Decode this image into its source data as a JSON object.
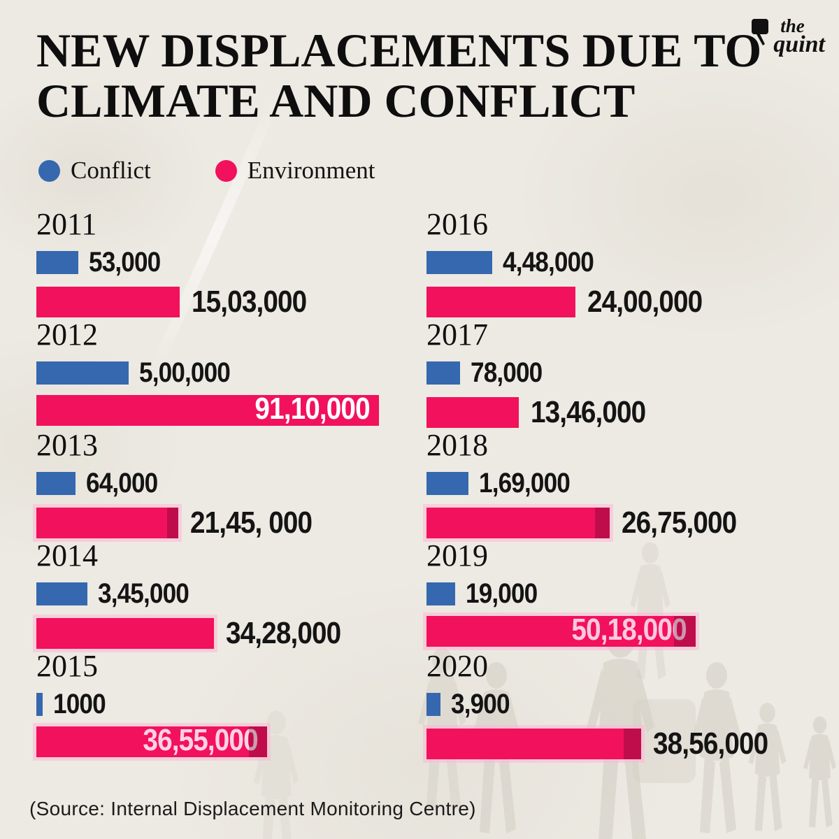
{
  "page": {
    "background": "#edeae3",
    "text_color": "#0e0e0e"
  },
  "logo": {
    "line1": "the",
    "line2": "quint",
    "color": "#111111"
  },
  "header": {
    "title_line1": "NEW DISPLACEMENTS DUE TO",
    "title_line2": "CLIMATE AND CONFLICT"
  },
  "legend": {
    "conflict": {
      "label": "Conflict",
      "color": "#3568af"
    },
    "environment": {
      "label": "Environment",
      "color": "#f1115c"
    }
  },
  "source_note": "(Source: Internal Displacement Monitoring Centre)",
  "chart_data": {
    "type": "bar",
    "orientation": "horizontal",
    "title": "NEW DISPLACEMENTS DUE TO CLIMATE AND CONFLICT",
    "legend_position": "top-left",
    "number_format": "Indian lakh grouping",
    "series": [
      {
        "name": "Conflict",
        "color": "#3568af"
      },
      {
        "name": "Environment",
        "color": "#f1115c"
      }
    ],
    "years": [
      {
        "year": "2011",
        "conflict_label": "53,000",
        "conflict_value": 53000,
        "environment_label": "15,03,000",
        "environment_value": 1503000,
        "conflict_bar_w": 60,
        "environment_bar_w": 205,
        "env_label_inside": false,
        "env_inside_color": "",
        "glow": false,
        "dark_edge": false
      },
      {
        "year": "2012",
        "conflict_label": "5,00,000",
        "conflict_value": 500000,
        "environment_label": "91,10,000",
        "environment_value": 9110000,
        "conflict_bar_w": 132,
        "environment_bar_w": 490,
        "env_label_inside": true,
        "env_inside_color": "#ffffff",
        "glow": false,
        "dark_edge": false
      },
      {
        "year": "2013",
        "conflict_label": "64,000",
        "conflict_value": 64000,
        "environment_label": "21,45, 000",
        "environment_value": 2145000,
        "conflict_bar_w": 56,
        "environment_bar_w": 203,
        "env_label_inside": false,
        "env_inside_color": "",
        "glow": true,
        "dark_edge": true
      },
      {
        "year": "2014",
        "conflict_label": "3,45,000",
        "conflict_value": 345000,
        "environment_label": "34,28,000",
        "environment_value": 3428000,
        "conflict_bar_w": 73,
        "environment_bar_w": 254,
        "env_label_inside": false,
        "env_inside_color": "",
        "glow": true,
        "dark_edge": false
      },
      {
        "year": "2015",
        "conflict_label": "1000",
        "conflict_value": 1000,
        "environment_label": "36,55,000",
        "environment_value": 3655000,
        "conflict_bar_w": 9,
        "environment_bar_w": 330,
        "env_label_inside": true,
        "env_inside_color": "#ffd2e4",
        "glow": true,
        "dark_edge": true
      },
      {
        "year": "2016",
        "conflict_label": "4,48,000",
        "conflict_value": 448000,
        "environment_label": "24,00,000",
        "environment_value": 2400000,
        "conflict_bar_w": 94,
        "environment_bar_w": 213,
        "env_label_inside": false,
        "env_inside_color": "",
        "glow": false,
        "dark_edge": false
      },
      {
        "year": "2017",
        "conflict_label": "78,000",
        "conflict_value": 78000,
        "environment_label": "13,46,000",
        "environment_value": 1346000,
        "conflict_bar_w": 48,
        "environment_bar_w": 132,
        "env_label_inside": false,
        "env_inside_color": "",
        "glow": false,
        "dark_edge": false
      },
      {
        "year": "2018",
        "conflict_label": "1,69,000",
        "conflict_value": 169000,
        "environment_label": "26,75,000",
        "environment_value": 2675000,
        "conflict_bar_w": 60,
        "environment_bar_w": 262,
        "env_label_inside": false,
        "env_inside_color": "",
        "glow": true,
        "dark_edge": true
      },
      {
        "year": "2019",
        "conflict_label": "19,000",
        "conflict_value": 19000,
        "environment_label": "50,18,000",
        "environment_value": 5018000,
        "conflict_bar_w": 41,
        "environment_bar_w": 385,
        "env_label_inside": true,
        "env_inside_color": "#ffc9de",
        "glow": true,
        "dark_edge": true
      },
      {
        "year": "2020",
        "conflict_label": "3,900",
        "conflict_value": 3900,
        "environment_label": "38,56,000",
        "environment_value": 3856000,
        "conflict_bar_w": 20,
        "environment_bar_w": 307,
        "env_label_inside": false,
        "env_inside_color": "",
        "glow": true,
        "dark_edge": true
      }
    ]
  }
}
